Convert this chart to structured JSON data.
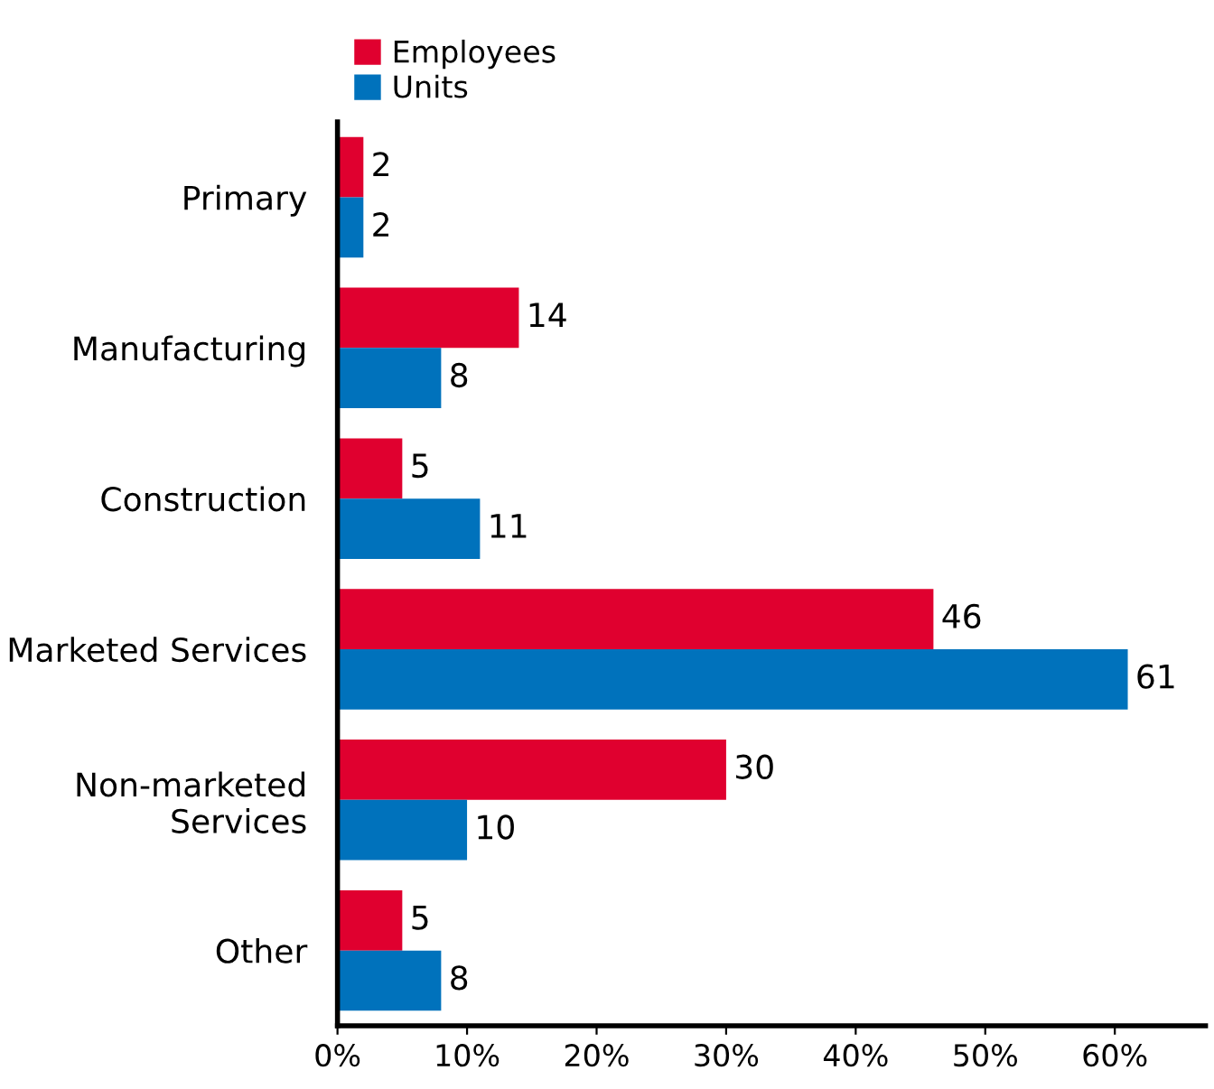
{
  "chart_data": {
    "type": "bar",
    "orientation": "horizontal",
    "categories": [
      "Primary",
      "Manufacturing",
      "Construction",
      "Marketed Services",
      "Non-marketed\nServices",
      "Other"
    ],
    "series": [
      {
        "name": "Employees",
        "color": "#e0002f",
        "values": [
          2,
          14,
          5,
          46,
          30,
          5
        ]
      },
      {
        "name": "Units",
        "color": "#0072bc",
        "values": [
          2,
          8,
          11,
          61,
          10,
          8
        ]
      }
    ],
    "xlim": [
      0,
      67
    ],
    "xticks": [
      {
        "value": 0,
        "label": "0%"
      },
      {
        "value": 10,
        "label": "10%"
      },
      {
        "value": 20,
        "label": "20%"
      },
      {
        "value": 30,
        "label": "30%"
      },
      {
        "value": 40,
        "label": "40%"
      },
      {
        "value": 50,
        "label": "50%"
      },
      {
        "value": 60,
        "label": "60%"
      }
    ],
    "data_labels": true,
    "legend": "top left",
    "grid": false
  }
}
